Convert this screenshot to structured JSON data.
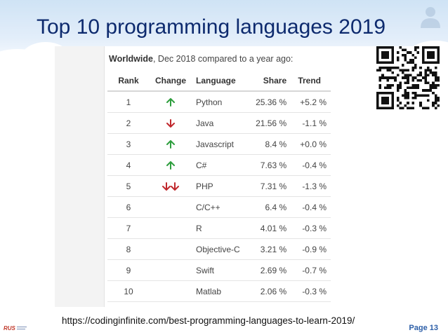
{
  "slide": {
    "title": "Top 10 programming languages 2019",
    "url": "https://codinginfinite.com/best-programming-languages-to-learn-2019/",
    "page_label": "Page 13",
    "logo_text": "RUS"
  },
  "table": {
    "subtitle_bold": "Worldwide",
    "subtitle_rest": ", Dec 2018 compared to a year ago:",
    "headers": {
      "rank": "Rank",
      "change": "Change",
      "language": "Language",
      "share": "Share",
      "trend": "Trend"
    },
    "rows": [
      {
        "rank": "1",
        "change": "up",
        "language": "Python",
        "share": "25.36 %",
        "trend": "+5.2 %"
      },
      {
        "rank": "2",
        "change": "down",
        "language": "Java",
        "share": "21.56 %",
        "trend": "-1.1 %"
      },
      {
        "rank": "3",
        "change": "up",
        "language": "Javascript",
        "share": "8.4 %",
        "trend": "+0.0 %"
      },
      {
        "rank": "4",
        "change": "up",
        "language": "C#",
        "share": "7.63 %",
        "trend": "-0.4 %"
      },
      {
        "rank": "5",
        "change": "down-down",
        "language": "PHP",
        "share": "7.31 %",
        "trend": "-1.3 %"
      },
      {
        "rank": "6",
        "change": "",
        "language": "C/C++",
        "share": "6.4 %",
        "trend": "-0.4 %"
      },
      {
        "rank": "7",
        "change": "",
        "language": "R",
        "share": "4.01 %",
        "trend": "-0.3 %"
      },
      {
        "rank": "8",
        "change": "",
        "language": "Objective-C",
        "share": "3.21 %",
        "trend": "-0.9 %"
      },
      {
        "rank": "9",
        "change": "",
        "language": "Swift",
        "share": "2.69 %",
        "trend": "-0.7 %"
      },
      {
        "rank": "10",
        "change": "",
        "language": "Matlab",
        "share": "2.06 %",
        "trend": "-0.3 %"
      }
    ]
  },
  "colors": {
    "title": "#0d2a6e",
    "up_arrow": "#2e9e3e",
    "down_arrow": "#c0282d",
    "page_number": "#2d5fa8"
  }
}
